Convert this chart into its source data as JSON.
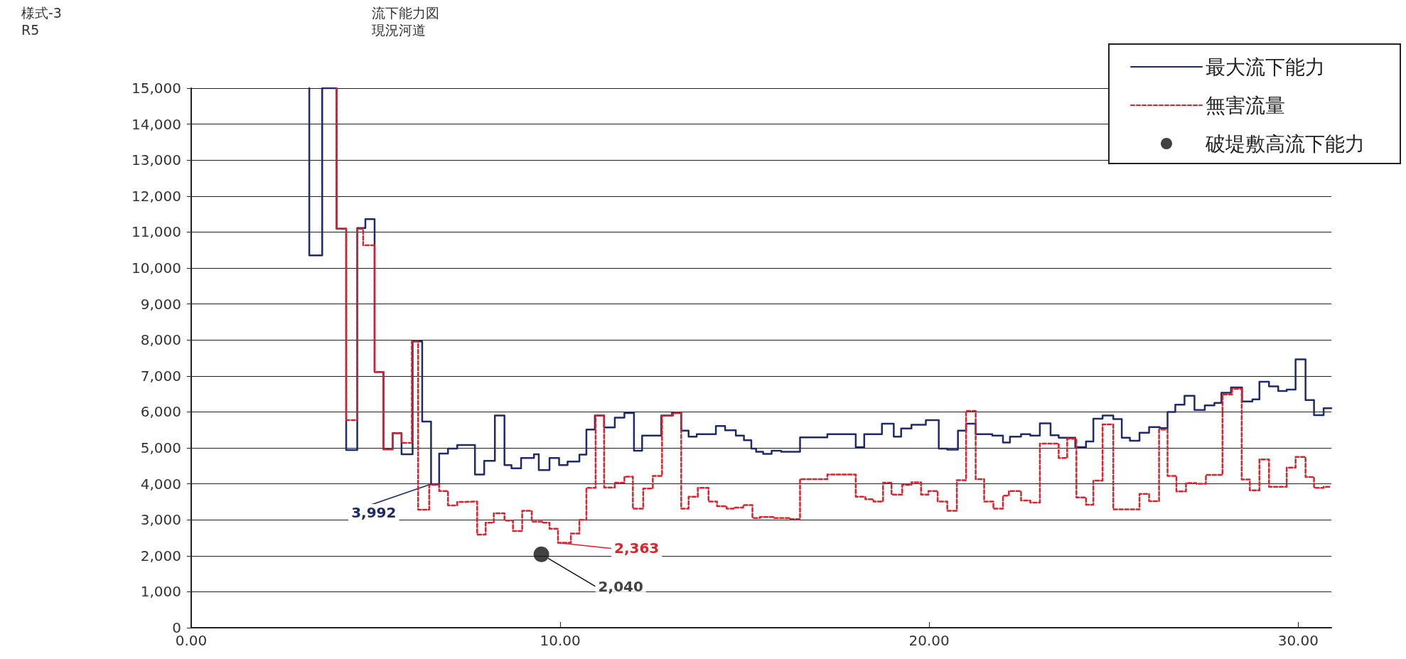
{
  "chart_data": {
    "type": "step",
    "title": "流下能力図",
    "subtitle": "現況河道",
    "annotations": [
      "様式-3",
      "R5"
    ],
    "xlim": [
      0,
      30.9
    ],
    "xticks": [
      {
        "value": 0,
        "label": "0.00"
      },
      {
        "value": 10,
        "label": "10.00"
      },
      {
        "value": 20,
        "label": "20.00"
      },
      {
        "value": 30,
        "label": "30.00"
      }
    ],
    "ylim": [
      0,
      15000
    ],
    "yticks": [
      0,
      {
        "value": 1000,
        "label": "1,000"
      },
      {
        "value": 2000,
        "label": "2,000"
      },
      {
        "value": 3000,
        "label": "3,000"
      },
      {
        "value": 4000,
        "label": "4,000"
      },
      {
        "value": 5000,
        "label": "5,000"
      },
      {
        "value": 6000,
        "label": "6,000"
      },
      {
        "value": 7000,
        "label": "7,000"
      },
      {
        "value": 8000,
        "label": "8,000"
      },
      {
        "value": 9000,
        "label": "9,000"
      },
      {
        "value": 10000,
        "label": "10,000"
      },
      {
        "value": 11000,
        "label": "11,000"
      },
      {
        "value": 12000,
        "label": "12,000"
      },
      {
        "value": 13000,
        "label": "13,000"
      },
      {
        "value": 14000,
        "label": "14,000"
      },
      {
        "value": 15000,
        "label": "15,000"
      }
    ],
    "grid": "y",
    "legend": "top right",
    "series": [
      {
        "name": "最大流下能力",
        "color": "#1f2a6b",
        "line_style": "solid",
        "marker": "none",
        "x": [
          3.2,
          3.2,
          3.55,
          3.94,
          4.2,
          4.5,
          4.72,
          4.97,
          5.21,
          5.46,
          5.7,
          6.0,
          6.26,
          6.5,
          6.72,
          6.96,
          7.21,
          7.69,
          7.94,
          8.23,
          8.49,
          8.68,
          8.94,
          9.29,
          9.42,
          9.71,
          9.97,
          10.2,
          10.52,
          10.71,
          10.94,
          11.19,
          11.48,
          11.74,
          12.0,
          12.22,
          12.74,
          13.03,
          13.28,
          13.48,
          13.7,
          14.22,
          14.47,
          14.76,
          14.98,
          15.18,
          15.31,
          15.5,
          15.73,
          15.99,
          16.5,
          17.24,
          18.01,
          18.24,
          18.72,
          19.04,
          19.24,
          19.52,
          19.91,
          20.26,
          20.49,
          20.78,
          21.0,
          21.26,
          21.71,
          22.0,
          22.19,
          22.49,
          22.74,
          23.0,
          23.29,
          23.51,
          23.96,
          24.25,
          24.45,
          24.7,
          24.99,
          25.22,
          25.44,
          25.7,
          25.96,
          26.25,
          26.46,
          26.67,
          26.92,
          27.19,
          27.47,
          27.73,
          27.92,
          28.18,
          28.48,
          28.76,
          28.95,
          29.21,
          29.46,
          29.69,
          29.93,
          30.2,
          30.43,
          30.69,
          30.9
        ],
        "values": [
          15000,
          10350,
          15000,
          11090,
          4940,
          11110,
          11360,
          7110,
          4960,
          5410,
          4820,
          7960,
          5730,
          3992,
          4840,
          4980,
          5080,
          4260,
          4640,
          5900,
          4520,
          4430,
          4720,
          4820,
          4380,
          4720,
          4520,
          4620,
          4810,
          5510,
          5900,
          5570,
          5840,
          5970,
          4920,
          5340,
          5900,
          5970,
          5480,
          5310,
          5380,
          5610,
          5490,
          5340,
          5210,
          4980,
          4890,
          4830,
          4920,
          4890,
          5290,
          5380,
          5020,
          5380,
          5670,
          5310,
          5540,
          5640,
          5770,
          4980,
          4950,
          5480,
          5670,
          5380,
          5340,
          5150,
          5310,
          5380,
          5340,
          5680,
          5350,
          5280,
          5020,
          5180,
          5810,
          5900,
          5800,
          5280,
          5200,
          5420,
          5580,
          5550,
          6000,
          6200,
          6450,
          6050,
          6180,
          6250,
          6530,
          6680,
          6290,
          6350,
          6840,
          6710,
          6580,
          6620,
          7460,
          6330,
          5910,
          6100,
          6100
        ],
        "value_labels": [
          null,
          null,
          null,
          null,
          null,
          null,
          null,
          null,
          null,
          null,
          null,
          null,
          null,
          "3,992",
          null,
          null,
          null,
          null,
          null,
          null,
          null,
          null,
          null,
          null,
          null,
          null,
          null,
          null,
          null,
          null,
          null,
          null,
          null,
          null,
          null,
          null,
          null,
          null,
          null,
          null,
          null,
          null,
          null,
          null,
          null,
          null,
          null,
          null,
          null,
          null,
          null,
          null,
          null,
          null,
          null,
          null,
          null,
          null,
          null,
          null,
          null,
          null,
          null,
          null,
          null,
          null,
          null,
          null,
          null,
          null,
          null,
          null,
          null,
          null,
          null,
          null,
          null,
          null,
          null,
          null,
          null,
          null,
          null,
          null,
          null,
          null,
          null,
          null,
          null,
          null,
          null,
          null,
          null,
          null,
          null,
          null,
          null,
          null,
          null,
          null,
          null
        ]
      },
      {
        "name": "無害流量",
        "color": "#e0202a",
        "line_style": "dashed",
        "marker": "none",
        "x": [
          3.94,
          3.94,
          4.2,
          4.5,
          4.66,
          4.97,
          5.21,
          5.46,
          5.7,
          5.98,
          6.15,
          6.45,
          6.72,
          6.96,
          7.21,
          7.43,
          7.75,
          7.98,
          8.2,
          8.49,
          8.72,
          8.97,
          9.23,
          9.52,
          9.71,
          9.94,
          10.29,
          10.52,
          10.71,
          10.96,
          11.19,
          11.48,
          11.74,
          11.97,
          12.25,
          12.51,
          12.76,
          13.06,
          13.28,
          13.48,
          13.73,
          14.02,
          14.25,
          14.51,
          14.7,
          14.96,
          15.21,
          15.41,
          15.79,
          16.24,
          16.5,
          17.24,
          18.01,
          18.27,
          18.49,
          18.75,
          18.98,
          19.27,
          19.52,
          19.78,
          19.98,
          20.23,
          20.49,
          20.75,
          21.0,
          21.26,
          21.49,
          21.74,
          22.0,
          22.16,
          22.49,
          22.74,
          23.0,
          23.51,
          23.74,
          23.99,
          24.25,
          24.45,
          24.7,
          24.99,
          25.7,
          25.96,
          26.23,
          26.46,
          26.7,
          26.96,
          27.24,
          27.5,
          27.95,
          28.21,
          28.47,
          28.69,
          28.95,
          29.21,
          29.69,
          29.93,
          30.2,
          30.43,
          30.69,
          30.9
        ],
        "values": [
          15000,
          11090,
          5770,
          11090,
          10630,
          7110,
          4960,
          5410,
          5140,
          7960,
          3280,
          3970,
          3800,
          3400,
          3500,
          3510,
          2590,
          2920,
          3180,
          2980,
          2690,
          3250,
          2950,
          2920,
          2750,
          2363,
          2620,
          3000,
          3890,
          5900,
          3900,
          4030,
          4200,
          3310,
          3870,
          4220,
          5900,
          5970,
          3310,
          3640,
          3890,
          3510,
          3380,
          3310,
          3340,
          3410,
          3050,
          3080,
          3050,
          3020,
          4130,
          4260,
          3640,
          3570,
          3510,
          4030,
          3700,
          3970,
          4040,
          3700,
          3800,
          3510,
          3250,
          4100,
          6030,
          4130,
          3510,
          3310,
          3670,
          3800,
          3540,
          3480,
          5120,
          4720,
          5250,
          3620,
          3420,
          4090,
          5650,
          3290,
          3720,
          3520,
          5510,
          4220,
          3790,
          4020,
          4000,
          4250,
          6480,
          6640,
          4120,
          3820,
          4680,
          3920,
          4450,
          4750,
          4190,
          3890,
          3920,
          3920
        ],
        "value_labels": [
          null,
          null,
          null,
          null,
          null,
          null,
          null,
          null,
          null,
          null,
          null,
          null,
          null,
          null,
          null,
          null,
          null,
          null,
          null,
          null,
          null,
          null,
          null,
          null,
          null,
          "2,363",
          null,
          null,
          null,
          null,
          null,
          null,
          null,
          null,
          null,
          null,
          null,
          null,
          null,
          null,
          null,
          null,
          null,
          null,
          null,
          null,
          null,
          null,
          null,
          null,
          null,
          null,
          null,
          null,
          null,
          null,
          null,
          null,
          null,
          null,
          null,
          null,
          null,
          null,
          null,
          null,
          null,
          null,
          null,
          null,
          null,
          null,
          null,
          null,
          null,
          null,
          null,
          null,
          null,
          null,
          null,
          null,
          null,
          null,
          null,
          null,
          null,
          null,
          null,
          null,
          null,
          null,
          null,
          null,
          null,
          null,
          null,
          null,
          null,
          null
        ]
      },
      {
        "name": "破堤敷高流下能力",
        "type": "scatter",
        "color": "#111111",
        "marker": "circle",
        "x": [
          9.49
        ],
        "values": [
          2040
        ],
        "value_labels": [
          "2,040"
        ]
      }
    ]
  }
}
